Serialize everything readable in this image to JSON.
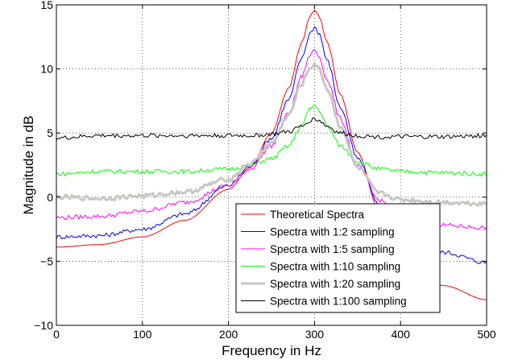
{
  "chart_data": {
    "type": "line",
    "title": "",
    "xlabel": "Frequency in Hz",
    "ylabel": "Magnitude in dB",
    "xlim": [
      0,
      500
    ],
    "ylim": [
      -10,
      15
    ],
    "xticks": [
      0,
      100,
      200,
      300,
      400,
      500
    ],
    "yticks": [
      -10,
      -5,
      0,
      5,
      10,
      15
    ],
    "xtick_labels": [
      "0",
      "100",
      "200",
      "300",
      "400",
      "500"
    ],
    "ytick_labels": [
      "−10",
      "−5",
      "0",
      "5",
      "10",
      "15"
    ],
    "grid": true,
    "legend_position": "lower-right",
    "series": [
      {
        "name": "Theoretical Spectra",
        "color": "#ff0000",
        "width": 1,
        "x": [
          0,
          50,
          100,
          150,
          200,
          225,
          250,
          270,
          285,
          295,
          300,
          305,
          315,
          330,
          350,
          375,
          400,
          450,
          500
        ],
        "y": [
          -3.9,
          -3.7,
          -3.1,
          -1.8,
          0.6,
          2.3,
          5.0,
          8.5,
          12.0,
          14.2,
          14.6,
          14.2,
          12.0,
          8.0,
          3.5,
          -1.0,
          -4.3,
          -6.9,
          -8.0
        ]
      },
      {
        "name": "Spectra with 1:2 sampling",
        "color": "#0000ff",
        "width": 1,
        "x": [
          0,
          50,
          100,
          150,
          200,
          225,
          250,
          270,
          285,
          295,
          300,
          305,
          315,
          330,
          350,
          375,
          400,
          450,
          500
        ],
        "y": [
          -3.1,
          -3.0,
          -2.5,
          -1.3,
          0.9,
          2.4,
          4.6,
          7.6,
          10.8,
          12.8,
          13.3,
          12.8,
          10.6,
          7.0,
          3.0,
          -0.6,
          -2.9,
          -4.3,
          -5.1
        ]
      },
      {
        "name": "Spectra with 1:5 sampling",
        "color": "#ff00ff",
        "width": 1,
        "x": [
          0,
          50,
          100,
          150,
          200,
          225,
          250,
          270,
          285,
          295,
          300,
          305,
          315,
          330,
          350,
          375,
          400,
          450,
          500
        ],
        "y": [
          -1.6,
          -1.5,
          -1.1,
          -0.4,
          0.9,
          2.2,
          4.0,
          6.5,
          9.4,
          11.1,
          11.5,
          11.0,
          9.1,
          6.1,
          2.4,
          -0.2,
          -1.5,
          -2.2,
          -2.4
        ]
      },
      {
        "name": "Spectra with 1:10 sampling",
        "color": "#00ff00",
        "width": 1,
        "x": [
          0,
          50,
          100,
          150,
          200,
          225,
          250,
          270,
          285,
          295,
          300,
          305,
          315,
          330,
          350,
          375,
          400,
          450,
          500
        ],
        "y": [
          1.8,
          2.0,
          2.0,
          2.0,
          2.2,
          2.5,
          3.0,
          4.0,
          5.6,
          6.9,
          7.2,
          6.8,
          5.5,
          4.0,
          2.8,
          2.2,
          2.0,
          1.9,
          1.8
        ]
      },
      {
        "name": "Spectra with 1:20 sampling",
        "color": "#c8c8c0",
        "width": 3,
        "x": [
          0,
          50,
          100,
          150,
          200,
          225,
          250,
          270,
          285,
          295,
          300,
          305,
          315,
          330,
          350,
          375,
          400,
          450,
          500
        ],
        "y": [
          0.0,
          -0.1,
          0.1,
          0.4,
          1.4,
          2.6,
          4.2,
          6.4,
          8.8,
          10.1,
          10.4,
          10.0,
          8.4,
          5.5,
          2.3,
          0.3,
          -0.2,
          -0.4,
          -0.5
        ]
      },
      {
        "name": "Spectra with 1:100 sampling",
        "color": "#000000",
        "width": 1,
        "x": [
          0,
          50,
          100,
          150,
          200,
          225,
          250,
          270,
          285,
          295,
          300,
          305,
          315,
          330,
          350,
          375,
          400,
          450,
          500
        ],
        "y": [
          4.6,
          4.8,
          4.8,
          4.8,
          4.8,
          4.8,
          4.9,
          5.1,
          5.5,
          6.0,
          6.1,
          6.0,
          5.5,
          5.0,
          4.8,
          4.7,
          4.7,
          4.7,
          4.8
        ]
      }
    ]
  }
}
